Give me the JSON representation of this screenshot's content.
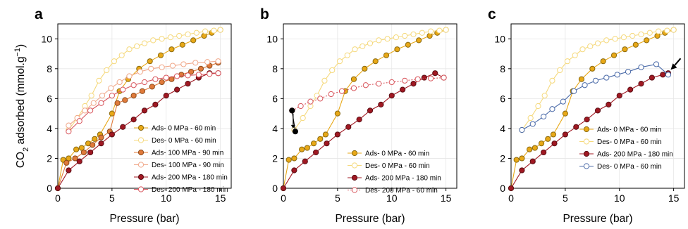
{
  "palette": {
    "gold": "#e8a817",
    "gold_dark": "#8a6a10",
    "pale_yellow": "#f5d97c",
    "orange": "#e07a3a",
    "orange_dark": "#8a4a1c",
    "peach": "#f0a88a",
    "dark_red": "#a01822",
    "dark_red_edge": "#5a0e14",
    "light_red": "#d8555c",
    "blue": "#4a6aa8",
    "black": "#000000"
  },
  "axes": {
    "ylabel_prefix": "CO",
    "ylabel_sub": "2",
    "ylabel_mid": " adsorbed (mmol.g",
    "ylabel_sup": "−1",
    "ylabel_suffix": ")"
  },
  "chart_data": [
    {
      "panel": "a",
      "type": "line",
      "xlabel": "Pressure (bar)",
      "xlim": [
        0,
        16
      ],
      "ylim": [
        0,
        11
      ],
      "xticks": [
        0,
        5,
        10,
        15
      ],
      "yticks": [
        0,
        2,
        4,
        6,
        8,
        10
      ],
      "grid": true,
      "legend": "lower-right",
      "series": [
        {
          "name": "Ads- 0 MPa - 60 min",
          "color": "gold",
          "filled": true,
          "dashed": false,
          "x": [
            0,
            0.5,
            1.0,
            1.7,
            2.2,
            2.8,
            3.4,
            3.9,
            5.0,
            5.7,
            6.5,
            7.5,
            8.5,
            9.5,
            10.5,
            11.5,
            12.5,
            13.5,
            14.2,
            15.0
          ],
          "y": [
            0,
            1.9,
            2.0,
            2.6,
            2.7,
            3.0,
            3.3,
            3.6,
            5.0,
            6.5,
            7.3,
            8.0,
            8.5,
            8.9,
            9.3,
            9.6,
            9.9,
            10.2,
            10.4,
            10.6
          ]
        },
        {
          "name": "Des- 0 MPa - 60 min",
          "color": "pale_yellow",
          "filled": false,
          "dashed": false,
          "x": [
            1.0,
            1.8,
            2.5,
            3.1,
            3.8,
            4.5,
            5.2,
            5.9,
            6.6,
            7.3,
            8.0,
            8.8,
            9.6,
            10.4,
            11.2,
            12.0,
            12.8,
            13.6,
            14.4,
            15.0
          ],
          "y": [
            3.9,
            4.7,
            5.5,
            6.2,
            7.2,
            7.9,
            8.5,
            8.9,
            9.3,
            9.5,
            9.7,
            9.9,
            10.0,
            10.1,
            10.2,
            10.3,
            10.4,
            10.5,
            10.55,
            10.6
          ]
        },
        {
          "name": "Ads- 100 MPa - 90 min",
          "color": "orange",
          "filled": true,
          "dashed": false,
          "x": [
            0,
            0.8,
            1.6,
            2.4,
            3.2,
            4.0,
            4.8,
            5.5,
            6.2,
            7.0,
            7.8,
            8.7,
            9.6,
            10.5,
            11.4,
            12.3,
            13.2,
            14.0,
            14.8
          ],
          "y": [
            0,
            1.7,
            2.0,
            2.4,
            2.9,
            3.4,
            3.8,
            5.7,
            5.9,
            6.2,
            6.5,
            6.8,
            7.1,
            7.3,
            7.6,
            7.8,
            8.0,
            8.2,
            8.4
          ]
        },
        {
          "name": "Des- 100 MPa - 90 min",
          "color": "peach",
          "filled": false,
          "dashed": false,
          "x": [
            1.0,
            1.8,
            2.5,
            3.3,
            4.1,
            4.9,
            5.7,
            6.6,
            7.6,
            8.6,
            9.6,
            10.6,
            11.6,
            12.7,
            13.8,
            14.8
          ],
          "y": [
            4.2,
            4.7,
            5.2,
            5.7,
            6.2,
            6.7,
            7.1,
            7.5,
            7.8,
            8.0,
            8.1,
            8.2,
            8.3,
            8.4,
            8.45,
            8.5
          ]
        },
        {
          "name": "Ads- 200 MPa - 180 min",
          "color": "dark_red",
          "filled": true,
          "dashed": false,
          "x": [
            0,
            1.0,
            2.0,
            3.0,
            4.0,
            5.0,
            6.0,
            7.0,
            8.0,
            9.0,
            10.0,
            11.0,
            12.0,
            13.0,
            14.0,
            14.8
          ],
          "y": [
            0,
            1.2,
            1.8,
            2.4,
            3.0,
            3.6,
            4.1,
            4.6,
            5.2,
            5.6,
            6.2,
            6.6,
            7.0,
            7.4,
            7.7,
            7.7
          ]
        },
        {
          "name": "Des- 200 MPa - 180 min",
          "color": "light_red",
          "filled": false,
          "dashed": false,
          "x": [
            1.0,
            2.0,
            3.0,
            4.0,
            5.0,
            6.0,
            7.0,
            8.0,
            9.0,
            10.0,
            11.0,
            12.0,
            13.0,
            14.0,
            14.8
          ],
          "y": [
            3.8,
            4.5,
            5.2,
            5.7,
            6.2,
            6.6,
            6.9,
            7.1,
            7.3,
            7.4,
            7.5,
            7.55,
            7.6,
            7.65,
            7.7
          ]
        }
      ]
    },
    {
      "panel": "b",
      "type": "line",
      "xlabel": "Pressure (bar)",
      "xlim": [
        0,
        16
      ],
      "ylim": [
        0,
        11
      ],
      "xticks": [
        0,
        5,
        10,
        15
      ],
      "yticks": [
        0,
        2,
        4,
        6,
        8,
        10
      ],
      "grid": true,
      "legend": "lower-right",
      "series": [
        {
          "name": "Ads- 0 MPa - 60 min",
          "color": "gold",
          "filled": true,
          "dashed": false,
          "x": [
            0,
            0.5,
            1.0,
            1.7,
            2.2,
            2.8,
            3.4,
            3.9,
            5.0,
            5.7,
            6.5,
            7.5,
            8.5,
            9.5,
            10.5,
            11.5,
            12.5,
            13.5,
            14.2,
            15.0
          ],
          "y": [
            0,
            1.9,
            2.0,
            2.6,
            2.7,
            3.0,
            3.3,
            3.6,
            5.0,
            6.5,
            7.3,
            8.0,
            8.5,
            8.9,
            9.3,
            9.6,
            9.9,
            10.2,
            10.4,
            10.6
          ]
        },
        {
          "name": "Des- 0 MPa - 60 min",
          "color": "pale_yellow",
          "filled": false,
          "dashed": false,
          "x": [
            1.0,
            1.8,
            2.5,
            3.1,
            3.8,
            4.5,
            5.2,
            5.9,
            6.6,
            7.3,
            8.0,
            8.8,
            9.6,
            10.4,
            11.2,
            12.0,
            12.8,
            13.6,
            14.4,
            15.0
          ],
          "y": [
            3.9,
            4.7,
            5.5,
            6.2,
            7.2,
            7.9,
            8.5,
            8.9,
            9.3,
            9.5,
            9.7,
            9.9,
            10.0,
            10.1,
            10.2,
            10.3,
            10.4,
            10.5,
            10.55,
            10.6
          ]
        },
        {
          "name": "Ads- 200 MPa - 180 min",
          "color": "dark_red",
          "filled": true,
          "dashed": false,
          "x": [
            0,
            1.0,
            2.0,
            3.0,
            4.0,
            5.0,
            6.0,
            7.0,
            8.0,
            9.0,
            10.0,
            11.0,
            12.0,
            13.0,
            14.0,
            14.8
          ],
          "y": [
            0,
            1.2,
            1.8,
            2.4,
            3.0,
            3.6,
            4.1,
            4.6,
            5.2,
            5.6,
            6.2,
            6.6,
            7.0,
            7.4,
            7.7,
            7.4
          ]
        },
        {
          "name": "Des- 200 MPa - 60 min",
          "color": "light_red",
          "filled": false,
          "dashed": true,
          "x": [
            0.8,
            1.6,
            2.5,
            3.4,
            4.4,
            5.4,
            6.5,
            7.6,
            8.8,
            10.0,
            11.2,
            12.4,
            13.6,
            14.8
          ],
          "y": [
            5.2,
            5.5,
            5.8,
            6.0,
            6.3,
            6.5,
            6.7,
            6.9,
            7.0,
            7.1,
            7.2,
            7.3,
            7.35,
            7.4
          ]
        },
        {
          "name": "",
          "color": "black",
          "filled": true,
          "dashed": false,
          "x": [
            0.8,
            1.1
          ],
          "y": [
            5.2,
            3.8
          ]
        }
      ]
    },
    {
      "panel": "c",
      "type": "line",
      "xlabel": "Pressure (bar)",
      "xlim": [
        0,
        16
      ],
      "ylim": [
        0,
        11
      ],
      "xticks": [
        0,
        5,
        10,
        15
      ],
      "yticks": [
        0,
        2,
        4,
        6,
        8,
        10
      ],
      "grid": true,
      "legend": "lower-right",
      "series": [
        {
          "name": "Ads- 0 MPa - 60 min",
          "color": "gold",
          "filled": true,
          "dashed": false,
          "x": [
            0,
            0.5,
            1.0,
            1.7,
            2.2,
            2.8,
            3.4,
            3.9,
            5.0,
            5.7,
            6.5,
            7.5,
            8.5,
            9.5,
            10.5,
            11.5,
            12.5,
            13.5,
            14.2,
            15.0
          ],
          "y": [
            0,
            1.9,
            2.0,
            2.6,
            2.7,
            3.0,
            3.3,
            3.6,
            5.0,
            6.5,
            7.3,
            8.0,
            8.5,
            8.9,
            9.3,
            9.6,
            9.9,
            10.2,
            10.4,
            10.6
          ]
        },
        {
          "name": "Des- 0 MPa - 60 min",
          "color": "pale_yellow",
          "filled": false,
          "dashed": false,
          "x": [
            1.0,
            1.8,
            2.5,
            3.1,
            3.8,
            4.5,
            5.2,
            5.9,
            6.6,
            7.3,
            8.0,
            8.8,
            9.6,
            10.4,
            11.2,
            12.0,
            12.8,
            13.6,
            14.4,
            15.0
          ],
          "y": [
            3.9,
            4.7,
            5.5,
            6.2,
            7.2,
            7.9,
            8.5,
            8.9,
            9.3,
            9.5,
            9.7,
            9.9,
            10.0,
            10.1,
            10.2,
            10.3,
            10.4,
            10.5,
            10.55,
            10.6
          ]
        },
        {
          "name": "Ads- 200 MPa - 180 min",
          "color": "dark_red",
          "filled": true,
          "dashed": false,
          "x": [
            0,
            1.0,
            2.0,
            3.0,
            4.0,
            5.0,
            6.0,
            7.0,
            8.0,
            9.0,
            10.0,
            11.0,
            12.0,
            13.0,
            14.0,
            14.5
          ],
          "y": [
            0,
            1.2,
            1.8,
            2.4,
            3.0,
            3.6,
            4.1,
            4.6,
            5.2,
            5.6,
            6.2,
            6.6,
            7.0,
            7.4,
            7.6,
            7.7
          ]
        },
        {
          "name": "Des- 0 MPa - 60 min",
          "color": "blue",
          "filled": false,
          "dashed": false,
          "x": [
            1.0,
            2.0,
            3.0,
            3.8,
            4.8,
            5.8,
            6.8,
            7.8,
            8.8,
            9.8,
            10.8,
            12.0,
            13.4,
            14.5
          ],
          "y": [
            3.9,
            4.3,
            4.8,
            5.3,
            5.8,
            6.5,
            6.9,
            7.2,
            7.4,
            7.6,
            7.8,
            8.1,
            8.3,
            7.6
          ]
        }
      ]
    }
  ]
}
